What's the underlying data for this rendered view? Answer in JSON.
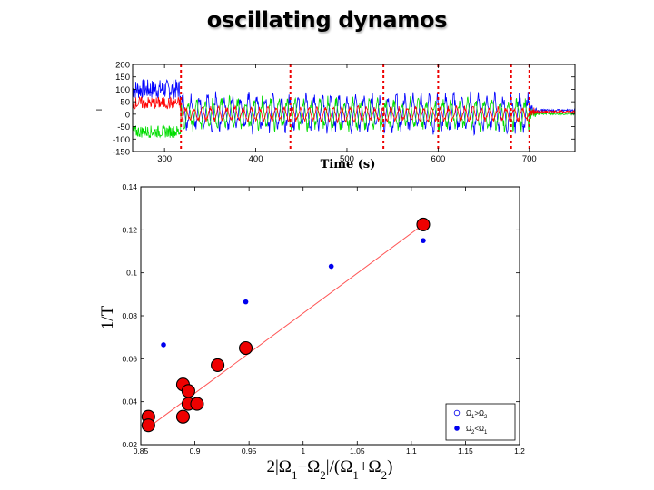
{
  "slide": {
    "title": "oscillating dynamos"
  },
  "chart_data": [
    {
      "type": "line",
      "name": "time-series",
      "xlabel": "Time (s)",
      "ylabel": "I",
      "xlim": [
        265,
        750
      ],
      "ylim": [
        -150,
        200
      ],
      "xticks": [
        300,
        400,
        500,
        600,
        700
      ],
      "yticks": [
        -150,
        -100,
        -50,
        0,
        50,
        100,
        150,
        200
      ],
      "series": [
        {
          "name": "blue",
          "color": "#0000ff",
          "pre_mean": 100,
          "pre_spread": 40,
          "osc_mean": 5,
          "osc_amp": 90,
          "post_mean": 15
        },
        {
          "name": "green",
          "color": "#00dd00",
          "pre_mean": -70,
          "pre_spread": 25,
          "osc_mean": 0,
          "osc_amp": 75,
          "post_mean": 2
        },
        {
          "name": "red",
          "color": "#ff0000",
          "pre_mean": 45,
          "pre_spread": 25,
          "osc_mean": 0,
          "osc_amp": 35,
          "post_mean": 10
        }
      ],
      "oscillation_start": 318,
      "oscillation_end": 700,
      "oscillation_period": 9,
      "event_lines_x": [
        318,
        438,
        540,
        600,
        680,
        700
      ],
      "event_line_color": "#ee0000"
    },
    {
      "type": "scatter",
      "name": "frequency-vs-shear",
      "xlabel_parts": [
        "2|Ω",
        "1",
        "−Ω",
        "2",
        "|/(Ω",
        "1",
        "+Ω",
        "2",
        ")"
      ],
      "ylabel": "1/T",
      "xlim": [
        0.85,
        1.2
      ],
      "ylim": [
        0.02,
        0.14
      ],
      "xticks": [
        0.85,
        0.9,
        0.95,
        1,
        1.05,
        1.1,
        1.15,
        1.2
      ],
      "xtick_labels": [
        "0.85",
        "0.9",
        "0.95",
        "1",
        "1.05",
        "1.1",
        "1.15",
        "1.2"
      ],
      "yticks": [
        0.02,
        0.04,
        0.06,
        0.08,
        0.1,
        0.12,
        0.14
      ],
      "ytick_labels": [
        "0.02",
        "0.04",
        "0.06",
        "0.08",
        "0.1",
        "0.12",
        "0.14"
      ],
      "series": [
        {
          "name": "large-red",
          "marker_color": "#ee0000",
          "points": [
            [
              0.857,
              0.033
            ],
            [
              0.857,
              0.029
            ],
            [
              0.889,
              0.048
            ],
            [
              0.889,
              0.033
            ],
            [
              0.894,
              0.045
            ],
            [
              0.894,
              0.039
            ],
            [
              0.902,
              0.039
            ],
            [
              0.921,
              0.057
            ],
            [
              0.947,
              0.065
            ],
            [
              1.111,
              0.1225
            ]
          ]
        },
        {
          "name": "small-blue",
          "marker_color": "#0000ee",
          "points": [
            [
              0.871,
              0.0665
            ],
            [
              0.947,
              0.0865
            ],
            [
              1.026,
              0.103
            ],
            [
              1.111,
              0.115
            ]
          ]
        }
      ],
      "fit_line": {
        "color": "#ff5555",
        "from": [
          0.857,
          0.028
        ],
        "to": [
          1.111,
          0.1225
        ]
      },
      "legend": {
        "position": "bottom-right",
        "entries": [
          {
            "marker": "open-circle",
            "color": "#0000ee",
            "label_parts": [
              "Ω",
              "1",
              ">Ω",
              "2"
            ]
          },
          {
            "marker": "filled-circle",
            "color": "#0000ee",
            "label_parts": [
              "Ω",
              "2",
              "<Ω",
              "1"
            ]
          }
        ]
      }
    }
  ]
}
